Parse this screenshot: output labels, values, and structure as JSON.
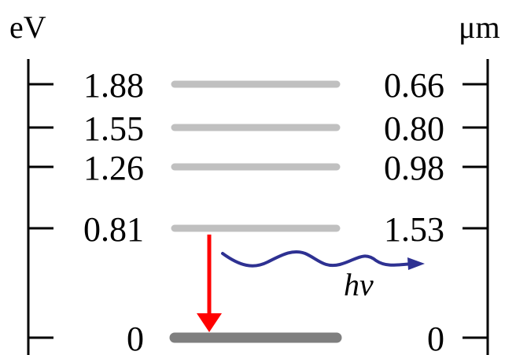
{
  "units": {
    "left": "eV",
    "right": "μm"
  },
  "levels": [
    {
      "energy_ev": "1.88",
      "wavelength_um": "0.66",
      "ground": false
    },
    {
      "energy_ev": "1.55",
      "wavelength_um": "0.80",
      "ground": false
    },
    {
      "energy_ev": "1.26",
      "wavelength_um": "0.98",
      "ground": false
    },
    {
      "energy_ev": "0.81",
      "wavelength_um": "1.53",
      "ground": false
    },
    {
      "energy_ev": "0",
      "wavelength_um": "0",
      "ground": true
    }
  ],
  "transition": {
    "from_level": "0.81",
    "to_level": "0"
  },
  "photon": {
    "label": "hv"
  },
  "colors": {
    "excited_level": "#c0c0c0",
    "ground_level": "#7f7f7f",
    "arrow": "#ff0000",
    "photon": "#2e3192",
    "axis": "#000000"
  }
}
